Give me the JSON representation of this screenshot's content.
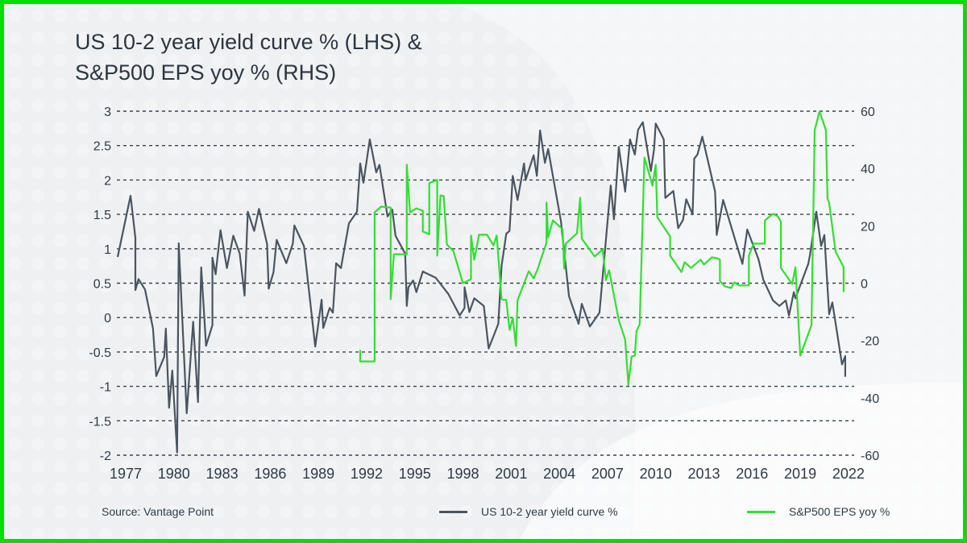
{
  "title_line1": "US 10-2 year yield curve % (LHS) &",
  "title_line2": "S&P500 EPS yoy % (RHS)",
  "source": "Source: Vantage Point",
  "colors": {
    "frame": "#00e000",
    "yield_curve": "#4a5560",
    "eps": "#33dd33",
    "grid": "#3a434c"
  },
  "chart_data": {
    "type": "line",
    "title": "US 10-2 year yield curve % (LHS) & S&P500 EPS yoy % (RHS)",
    "xlabel": "",
    "ylabel_left": "US 10-2 year yield curve %",
    "ylabel_right": "S&P500 EPS yoy %",
    "xlim": [
      1977,
      2022
    ],
    "x_ticks": [
      "1977",
      "1980",
      "1983",
      "1986",
      "1989",
      "1992",
      "1995",
      "1998",
      "2001",
      "2004",
      "2007",
      "2010",
      "2013",
      "2016",
      "2019",
      "2022"
    ],
    "ylim_left": [
      -2,
      3
    ],
    "y_ticks_left": [
      "3",
      "2.5",
      "2",
      "1.5",
      "1",
      "0.5",
      "0",
      "-0.5",
      "-1",
      "-1.5",
      "-2"
    ],
    "ylim_right": [
      -60,
      60
    ],
    "y_ticks_right": [
      "60",
      "40",
      "20",
      "0",
      "-20",
      "-40",
      "-60"
    ],
    "grid": "horizontal dashed",
    "legend": "bottom",
    "series": [
      {
        "name": "US 10-2 year yield curve %",
        "axis": "left",
        "points": [
          [
            1976.5,
            0.88
          ],
          [
            1977.3,
            1.77
          ],
          [
            1977.6,
            1.16
          ],
          [
            1977.6,
            0.4
          ],
          [
            1977.8,
            0.56
          ],
          [
            1978.2,
            0.41
          ],
          [
            1978.7,
            -0.16
          ],
          [
            1978.9,
            -0.85
          ],
          [
            1979.4,
            -0.57
          ],
          [
            1979.5,
            -0.16
          ],
          [
            1979.7,
            -1.31
          ],
          [
            1979.9,
            -0.77
          ],
          [
            1980.2,
            -1.96
          ],
          [
            1980.3,
            1.08
          ],
          [
            1980.8,
            -1.39
          ],
          [
            1981.2,
            -0.06
          ],
          [
            1981.5,
            -1.23
          ],
          [
            1981.7,
            0.73
          ],
          [
            1982.0,
            -0.41
          ],
          [
            1982.4,
            -0.11
          ],
          [
            1982.4,
            0.87
          ],
          [
            1982.6,
            0.63
          ],
          [
            1982.9,
            1.27
          ],
          [
            1983.3,
            0.72
          ],
          [
            1983.7,
            1.19
          ],
          [
            1984.1,
            0.93
          ],
          [
            1984.4,
            0.32
          ],
          [
            1984.6,
            1.54
          ],
          [
            1985.0,
            1.26
          ],
          [
            1985.3,
            1.58
          ],
          [
            1985.8,
            1.07
          ],
          [
            1985.9,
            0.42
          ],
          [
            1986.2,
            0.66
          ],
          [
            1986.4,
            1.13
          ],
          [
            1987.0,
            0.79
          ],
          [
            1987.4,
            1.07
          ],
          [
            1987.5,
            1.34
          ],
          [
            1988.1,
            1.04
          ],
          [
            1988.8,
            -0.42
          ],
          [
            1989.2,
            0.26
          ],
          [
            1989.3,
            -0.15
          ],
          [
            1989.7,
            0.14
          ],
          [
            1989.9,
            0.07
          ],
          [
            1990.1,
            0.79
          ],
          [
            1990.4,
            0.72
          ],
          [
            1990.9,
            1.37
          ],
          [
            1991.4,
            1.54
          ],
          [
            1991.6,
            2.24
          ],
          [
            1991.8,
            1.96
          ],
          [
            1992.2,
            2.59
          ],
          [
            1992.6,
            2.11
          ],
          [
            1992.8,
            2.22
          ],
          [
            1993.3,
            1.47
          ],
          [
            1993.6,
            1.57
          ],
          [
            1993.8,
            1.19
          ],
          [
            1994.4,
            0.93
          ],
          [
            1994.5,
            0.17
          ],
          [
            1994.6,
            0.44
          ],
          [
            1994.9,
            0.54
          ],
          [
            1995.1,
            0.37
          ],
          [
            1995.5,
            0.67
          ],
          [
            1996.3,
            0.58
          ],
          [
            1997.1,
            0.34
          ],
          [
            1997.8,
            0.03
          ],
          [
            1998.1,
            0.14
          ],
          [
            1998.1,
            0.44
          ],
          [
            1998.4,
            0.08
          ],
          [
            1998.7,
            0.28
          ],
          [
            1999.3,
            0.17
          ],
          [
            1999.6,
            -0.45
          ],
          [
            2000.2,
            -0.09
          ],
          [
            2000.4,
            0.75
          ],
          [
            2000.7,
            1.22
          ],
          [
            2000.9,
            1.26
          ],
          [
            2001.1,
            2.06
          ],
          [
            2001.4,
            1.71
          ],
          [
            2001.8,
            2.24
          ],
          [
            2001.9,
            2.0
          ],
          [
            2002.4,
            2.36
          ],
          [
            2002.6,
            2.06
          ],
          [
            2002.8,
            2.72
          ],
          [
            2003.1,
            2.25
          ],
          [
            2003.3,
            2.45
          ],
          [
            2004.1,
            1.4
          ],
          [
            2004.6,
            0.31
          ],
          [
            2005.2,
            -0.09
          ],
          [
            2005.4,
            0.2
          ],
          [
            2005.9,
            -0.13
          ],
          [
            2006.5,
            0.07
          ],
          [
            2007.2,
            1.92
          ],
          [
            2007.4,
            1.43
          ],
          [
            2007.7,
            2.48
          ],
          [
            2008.1,
            1.83
          ],
          [
            2008.4,
            2.59
          ],
          [
            2008.7,
            2.37
          ],
          [
            2008.9,
            2.73
          ],
          [
            2009.2,
            2.84
          ],
          [
            2009.7,
            2.13
          ],
          [
            2009.9,
            2.45
          ],
          [
            2010.0,
            2.82
          ],
          [
            2010.5,
            2.59
          ],
          [
            2010.6,
            1.74
          ],
          [
            2011.1,
            1.84
          ],
          [
            2011.4,
            1.3
          ],
          [
            2011.7,
            1.42
          ],
          [
            2011.9,
            1.72
          ],
          [
            2012.3,
            1.5
          ],
          [
            2012.4,
            2.31
          ],
          [
            2012.6,
            2.37
          ],
          [
            2012.9,
            2.63
          ],
          [
            2013.7,
            1.83
          ],
          [
            2013.8,
            1.2
          ],
          [
            2014.2,
            1.71
          ],
          [
            2015.4,
            0.78
          ],
          [
            2015.7,
            1.28
          ],
          [
            2016.4,
            0.85
          ],
          [
            2016.7,
            0.55
          ],
          [
            2017.3,
            0.25
          ],
          [
            2017.7,
            0.17
          ],
          [
            2018.1,
            0.25
          ],
          [
            2018.3,
            0.03
          ],
          [
            2018.6,
            0.37
          ],
          [
            2018.7,
            0.28
          ],
          [
            2019.5,
            0.78
          ],
          [
            2019.6,
            0.9
          ],
          [
            2020.0,
            1.54
          ],
          [
            2020.3,
            1.04
          ],
          [
            2020.5,
            1.2
          ],
          [
            2020.8,
            0.05
          ],
          [
            2021.0,
            0.22
          ],
          [
            2021.6,
            -0.68
          ],
          [
            2021.8,
            -0.56
          ],
          [
            2021.8,
            -0.86
          ]
        ]
      },
      {
        "name": "S&P500 EPS yoy %",
        "axis": "right",
        "points": [
          [
            1991.6,
            -23.3
          ],
          [
            1991.6,
            -27.3
          ],
          [
            1992.5,
            -27.3
          ],
          [
            1992.5,
            24.7
          ],
          [
            1992.9,
            26.7
          ],
          [
            1993.5,
            26.4
          ],
          [
            1993.5,
            -5.6
          ],
          [
            1993.7,
            10.1
          ],
          [
            1994.5,
            10.1
          ],
          [
            1994.5,
            41.3
          ],
          [
            1994.7,
            24.7
          ],
          [
            1995.1,
            26.1
          ],
          [
            1995.5,
            25.3
          ],
          [
            1995.5,
            18.0
          ],
          [
            1995.9,
            17.1
          ],
          [
            1995.9,
            34.9
          ],
          [
            1996.4,
            36.0
          ],
          [
            1996.4,
            9.6
          ],
          [
            1996.6,
            30.6
          ],
          [
            1996.8,
            30.4
          ],
          [
            1997.0,
            13.5
          ],
          [
            1997.4,
            11.2
          ],
          [
            1998.0,
            0.0
          ],
          [
            1998.5,
            1.4
          ],
          [
            1998.5,
            16.6
          ],
          [
            1998.7,
            8.2
          ],
          [
            1999.0,
            16.9
          ],
          [
            1999.5,
            16.9
          ],
          [
            1999.9,
            13.2
          ],
          [
            2000.1,
            16.6
          ],
          [
            2000.4,
            -5.6
          ],
          [
            2000.7,
            -5.9
          ],
          [
            2000.9,
            -16.3
          ],
          [
            2001.1,
            -12.1
          ],
          [
            2001.3,
            -21.9
          ],
          [
            2001.4,
            -5.9
          ],
          [
            2002.1,
            4.2
          ],
          [
            2002.4,
            1.7
          ],
          [
            2002.6,
            4.2
          ],
          [
            2003.2,
            14.1
          ],
          [
            2003.2,
            28.1
          ],
          [
            2003.3,
            16.0
          ],
          [
            2003.6,
            21.9
          ],
          [
            2004.2,
            18.8
          ],
          [
            2004.3,
            5.1
          ],
          [
            2004.4,
            13.8
          ],
          [
            2005.1,
            17.4
          ],
          [
            2005.3,
            29.8
          ],
          [
            2005.4,
            15.5
          ],
          [
            2006.2,
            9.3
          ],
          [
            2006.7,
            11.8
          ],
          [
            2006.9,
            1.1
          ],
          [
            2007.1,
            4.5
          ],
          [
            2007.7,
            -12.9
          ],
          [
            2008.1,
            -19.7
          ],
          [
            2008.3,
            -35.4
          ],
          [
            2008.5,
            -25.6
          ],
          [
            2008.7,
            -25.3
          ],
          [
            2008.8,
            -16.9
          ],
          [
            2009.0,
            -14.3
          ],
          [
            2009.3,
            43.8
          ],
          [
            2009.8,
            34.0
          ],
          [
            2010.0,
            41.3
          ],
          [
            2010.1,
            23.0
          ],
          [
            2010.9,
            16.3
          ],
          [
            2010.9,
            9.6
          ],
          [
            2011.6,
            3.9
          ],
          [
            2011.8,
            7.3
          ],
          [
            2012.2,
            5.3
          ],
          [
            2012.8,
            8.2
          ],
          [
            2013.0,
            6.5
          ],
          [
            2013.5,
            9.0
          ],
          [
            2013.8,
            8.7
          ],
          [
            2014.0,
            8.2
          ],
          [
            2014.0,
            0.8
          ],
          [
            2014.3,
            -1.1
          ],
          [
            2014.7,
            -1.7
          ],
          [
            2014.9,
            0.3
          ],
          [
            2015.2,
            -0.8
          ],
          [
            2015.8,
            -0.8
          ],
          [
            2015.8,
            9.6
          ],
          [
            2016.1,
            13.8
          ],
          [
            2016.8,
            13.8
          ],
          [
            2016.8,
            21.9
          ],
          [
            2017.3,
            24.2
          ],
          [
            2017.6,
            23.3
          ],
          [
            2017.8,
            21.4
          ],
          [
            2017.8,
            5.3
          ],
          [
            2018.5,
            -0.3
          ],
          [
            2018.7,
            5.6
          ],
          [
            2019.0,
            -25.3
          ],
          [
            2019.7,
            -14.6
          ],
          [
            2019.9,
            53.4
          ],
          [
            2020.2,
            59.9
          ],
          [
            2020.6,
            53.4
          ],
          [
            2020.7,
            29.5
          ],
          [
            2020.8,
            28.1
          ],
          [
            2021.2,
            11.0
          ],
          [
            2021.7,
            5.6
          ],
          [
            2021.7,
            -3.1
          ]
        ]
      }
    ]
  }
}
